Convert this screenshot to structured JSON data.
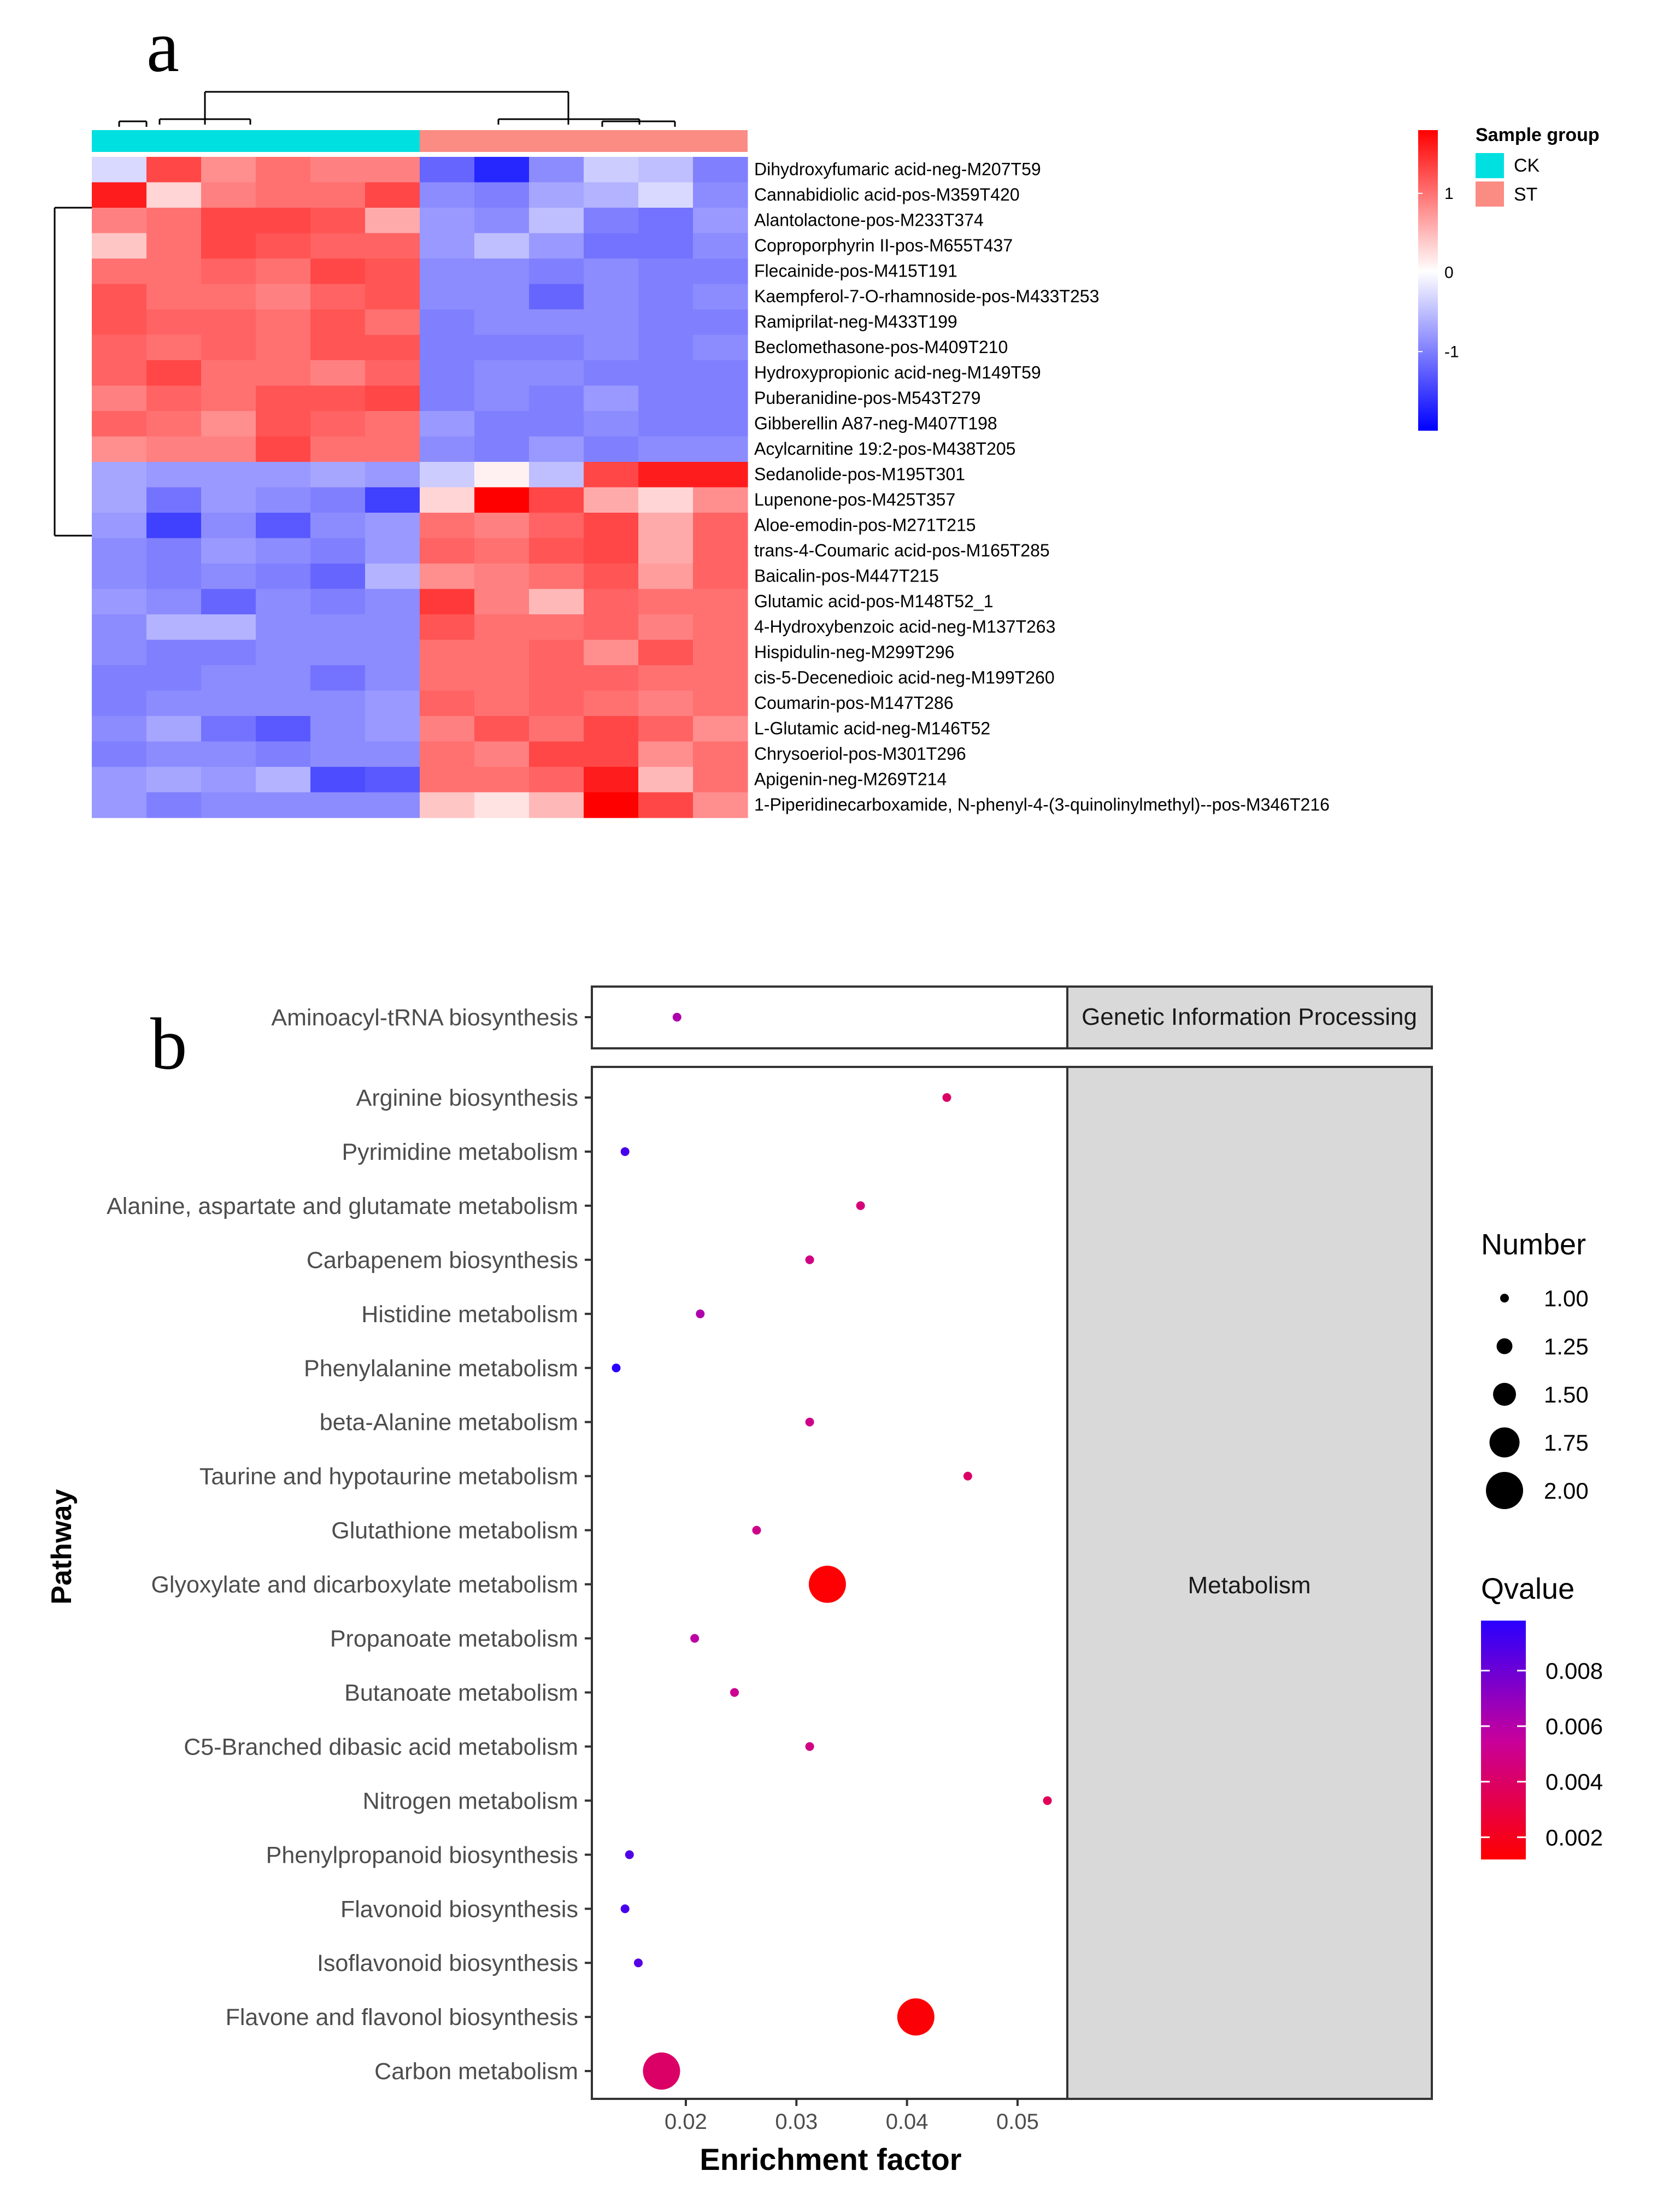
{
  "chart_data": [
    {
      "type": "heatmap",
      "panel_label": "a",
      "samples_per_group": 6,
      "groups": [
        "CK",
        "ST"
      ],
      "legend": {
        "color_scale_ticks": [
          1,
          0,
          -1
        ],
        "color_low": "#0000ff",
        "color_mid": "#ffffff",
        "color_high": "#ff0000",
        "value_range": [
          -2,
          1.8
        ],
        "group_title": "Sample group",
        "group_entries": [
          {
            "label": "CK",
            "color": "#00e0e0"
          },
          {
            "label": "ST",
            "color": "#fa8c84"
          }
        ]
      },
      "rows": [
        {
          "name": "Dihydroxyfumaric acid-neg-M207T59",
          "values": [
            -0.3,
            1.3,
            0.8,
            1.0,
            0.9,
            0.9,
            -1.2,
            -1.7,
            -0.9,
            -0.4,
            -0.5,
            -1.0
          ]
        },
        {
          "name": "Cannabidiolic acid-pos-M359T420",
          "values": [
            1.6,
            0.3,
            0.9,
            1.0,
            1.0,
            1.3,
            -0.9,
            -1.0,
            -0.7,
            -0.6,
            -0.3,
            -0.9
          ]
        },
        {
          "name": "Alantolactone-pos-M233T374",
          "values": [
            0.9,
            1.0,
            1.3,
            1.3,
            1.2,
            0.6,
            -0.8,
            -0.9,
            -0.5,
            -1.0,
            -1.1,
            -0.8
          ]
        },
        {
          "name": "Coproporphyrin II-pos-M655T437",
          "values": [
            0.4,
            1.0,
            1.3,
            1.2,
            1.1,
            1.1,
            -0.8,
            -0.5,
            -0.8,
            -1.1,
            -1.1,
            -0.9
          ]
        },
        {
          "name": "Flecainide-pos-M415T191",
          "values": [
            1.0,
            1.0,
            1.1,
            1.0,
            1.3,
            1.2,
            -0.9,
            -0.9,
            -1.0,
            -0.9,
            -1.0,
            -1.0
          ]
        },
        {
          "name": "Kaempferol-7-O-rhamnoside-pos-M433T253",
          "values": [
            1.2,
            1.0,
            1.0,
            0.9,
            1.1,
            1.2,
            -0.9,
            -0.9,
            -1.2,
            -0.9,
            -1.0,
            -0.9
          ]
        },
        {
          "name": "Ramiprilat-neg-M433T199",
          "values": [
            1.2,
            1.1,
            1.1,
            1.0,
            1.2,
            1.0,
            -1.0,
            -0.9,
            -0.9,
            -0.9,
            -1.0,
            -1.0
          ]
        },
        {
          "name": "Beclomethasone-pos-M409T210",
          "values": [
            1.1,
            1.0,
            1.1,
            1.0,
            1.2,
            1.2,
            -1.0,
            -1.0,
            -1.0,
            -0.9,
            -1.0,
            -0.9
          ]
        },
        {
          "name": "Hydroxypropionic acid-neg-M149T59",
          "values": [
            1.1,
            1.3,
            1.0,
            1.0,
            0.9,
            1.1,
            -1.0,
            -0.9,
            -0.9,
            -1.0,
            -1.0,
            -1.0
          ]
        },
        {
          "name": "Puberanidine-pos-M543T279",
          "values": [
            0.9,
            1.1,
            1.0,
            1.2,
            1.2,
            1.3,
            -1.0,
            -0.9,
            -1.0,
            -0.8,
            -1.0,
            -1.0
          ]
        },
        {
          "name": "Gibberellin A87-neg-M407T198",
          "values": [
            1.1,
            1.0,
            0.8,
            1.2,
            1.1,
            1.0,
            -0.8,
            -1.0,
            -1.0,
            -0.9,
            -1.0,
            -1.0
          ]
        },
        {
          "name": "Acylcarnitine 19:2-pos-M438T205",
          "values": [
            0.8,
            0.9,
            0.9,
            1.3,
            1.0,
            1.0,
            -0.9,
            -1.0,
            -0.8,
            -1.0,
            -0.9,
            -0.9
          ]
        },
        {
          "name": "Sedanolide-pos-M195T301",
          "values": [
            -0.7,
            -0.8,
            -0.8,
            -0.8,
            -0.7,
            -0.8,
            -0.4,
            0.1,
            -0.5,
            1.3,
            1.6,
            1.6
          ]
        },
        {
          "name": "Lupenone-pos-M425T357",
          "values": [
            -0.7,
            -1.1,
            -0.8,
            -0.9,
            -1.0,
            -1.5,
            0.3,
            1.8,
            1.3,
            0.6,
            0.3,
            0.8
          ]
        },
        {
          "name": "Aloe-emodin-pos-M271T215",
          "values": [
            -0.8,
            -1.5,
            -0.9,
            -1.3,
            -0.9,
            -0.8,
            1.0,
            0.9,
            1.1,
            1.3,
            0.6,
            1.1
          ]
        },
        {
          "name": "trans-4-Coumaric acid-pos-M165T285",
          "values": [
            -0.9,
            -1.0,
            -0.8,
            -0.9,
            -1.0,
            -0.8,
            1.1,
            1.0,
            1.2,
            1.3,
            0.6,
            1.1
          ]
        },
        {
          "name": "Baicalin-pos-M447T215",
          "values": [
            -0.9,
            -1.0,
            -0.9,
            -1.0,
            -1.2,
            -0.6,
            0.8,
            0.9,
            1.0,
            1.2,
            0.7,
            1.1
          ]
        },
        {
          "name": "Glutamic acid-pos-M148T52_1",
          "values": [
            -0.8,
            -0.9,
            -1.2,
            -0.9,
            -1.0,
            -0.9,
            1.4,
            0.9,
            0.5,
            1.1,
            1.0,
            1.0
          ]
        },
        {
          "name": "4-Hydroxybenzoic acid-neg-M137T263",
          "values": [
            -0.9,
            -0.6,
            -0.6,
            -0.9,
            -0.9,
            -0.9,
            1.2,
            1.0,
            1.0,
            1.1,
            0.9,
            1.0
          ]
        },
        {
          "name": "Hispidulin-neg-M299T296",
          "values": [
            -0.9,
            -1.0,
            -1.0,
            -0.9,
            -0.9,
            -0.9,
            1.0,
            1.0,
            1.1,
            0.8,
            1.2,
            1.0
          ]
        },
        {
          "name": "cis-5-Decenedioic acid-neg-M199T260",
          "values": [
            -1.0,
            -1.0,
            -0.9,
            -0.9,
            -1.1,
            -0.9,
            1.0,
            1.0,
            1.1,
            1.1,
            1.0,
            1.0
          ]
        },
        {
          "name": "Coumarin-pos-M147T286",
          "values": [
            -1.0,
            -0.9,
            -0.9,
            -0.9,
            -0.9,
            -0.8,
            1.1,
            1.0,
            1.1,
            1.0,
            0.9,
            1.0
          ]
        },
        {
          "name": "L-Glutamic acid-neg-M146T52",
          "values": [
            -0.9,
            -0.7,
            -1.1,
            -1.3,
            -0.9,
            -0.8,
            0.9,
            1.2,
            1.0,
            1.3,
            1.1,
            0.8
          ]
        },
        {
          "name": "Chrysoeriol-pos-M301T296",
          "values": [
            -1.0,
            -0.9,
            -0.9,
            -1.0,
            -0.9,
            -0.9,
            1.0,
            0.9,
            1.3,
            1.3,
            0.8,
            1.0
          ]
        },
        {
          "name": "Apigenin-neg-M269T214",
          "values": [
            -0.8,
            -0.7,
            -0.8,
            -0.6,
            -1.4,
            -1.3,
            1.0,
            1.0,
            1.1,
            1.6,
            0.5,
            1.0
          ]
        },
        {
          "name": "1-Piperidinecarboxamide, N-phenyl-4-(3-quinolinylmethyl)--pos-M346T216",
          "values": [
            -0.8,
            -1.0,
            -0.9,
            -0.9,
            -0.9,
            -0.9,
            0.4,
            0.2,
            0.5,
            1.8,
            1.3,
            0.8
          ]
        }
      ]
    },
    {
      "type": "scatter",
      "panel_label": "b",
      "xlabel": "Enrichment factor",
      "ylabel": "Pathway",
      "xlim": [
        0.0115,
        0.0545
      ],
      "x_ticks": [
        "0.02",
        "0.03",
        "0.04",
        "0.05"
      ],
      "size_legend": {
        "title": "Number",
        "values": [
          "1.00",
          "1.25",
          "1.50",
          "1.75",
          "2.00"
        ]
      },
      "color_legend": {
        "title": "Qvalue",
        "ticks": [
          "0.008",
          "0.006",
          "0.004",
          "0.002"
        ],
        "range": [
          0.0012,
          0.0098
        ],
        "color_low": "#ff0000",
        "color_high": "#2a00ff"
      },
      "facets": [
        {
          "label": "Genetic Information Processing",
          "points": [
            {
              "pathway": "Aminoacyl-tRNA biosynthesis",
              "x": 0.0192,
              "number": 1,
              "qvalue": 0.0062
            }
          ]
        },
        {
          "label": "Metabolism",
          "points": [
            {
              "pathway": "Arginine biosynthesis",
              "x": 0.0436,
              "number": 1,
              "qvalue": 0.004
            },
            {
              "pathway": "Pyrimidine metabolism",
              "x": 0.0145,
              "number": 1,
              "qvalue": 0.009
            },
            {
              "pathway": "Alanine, aspartate and glutamate metabolism",
              "x": 0.0358,
              "number": 1,
              "qvalue": 0.0045
            },
            {
              "pathway": "Carbapenem biosynthesis",
              "x": 0.0312,
              "number": 1,
              "qvalue": 0.0048
            },
            {
              "pathway": "Histidine metabolism",
              "x": 0.0213,
              "number": 1,
              "qvalue": 0.0062
            },
            {
              "pathway": "Phenylalanine metabolism",
              "x": 0.0137,
              "number": 1,
              "qvalue": 0.0098
            },
            {
              "pathway": "beta-Alanine metabolism",
              "x": 0.0312,
              "number": 1,
              "qvalue": 0.005
            },
            {
              "pathway": "Taurine and hypotaurine metabolism",
              "x": 0.0455,
              "number": 1,
              "qvalue": 0.004
            },
            {
              "pathway": "Glutathione metabolism",
              "x": 0.0264,
              "number": 1,
              "qvalue": 0.005
            },
            {
              "pathway": "Glyoxylate and dicarboxylate metabolism",
              "x": 0.0328,
              "number": 2,
              "qvalue": 0.0013
            },
            {
              "pathway": "Propanoate metabolism",
              "x": 0.0208,
              "number": 1,
              "qvalue": 0.0058
            },
            {
              "pathway": "Butanoate metabolism",
              "x": 0.0244,
              "number": 1,
              "qvalue": 0.0052
            },
            {
              "pathway": "C5-Branched dibasic acid metabolism",
              "x": 0.0312,
              "number": 1,
              "qvalue": 0.0048
            },
            {
              "pathway": "Nitrogen metabolism",
              "x": 0.0527,
              "number": 1,
              "qvalue": 0.0036
            },
            {
              "pathway": "Phenylpropanoid biosynthesis",
              "x": 0.0149,
              "number": 1,
              "qvalue": 0.0088
            },
            {
              "pathway": "Flavonoid biosynthesis",
              "x": 0.0145,
              "number": 1,
              "qvalue": 0.009
            },
            {
              "pathway": "Isoflavonoid biosynthesis",
              "x": 0.0157,
              "number": 1,
              "qvalue": 0.0086
            },
            {
              "pathway": "Flavone and flavonol biosynthesis",
              "x": 0.0408,
              "number": 2,
              "qvalue": 0.0014
            },
            {
              "pathway": "Carbon metabolism",
              "x": 0.0178,
              "number": 2,
              "qvalue": 0.004
            }
          ]
        }
      ]
    }
  ]
}
